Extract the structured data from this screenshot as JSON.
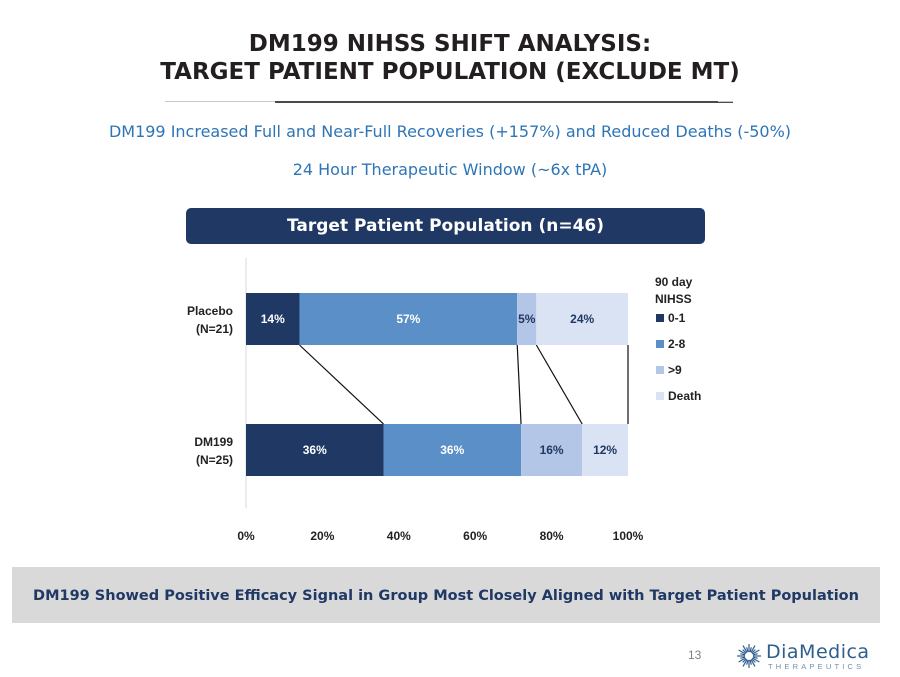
{
  "slide": {
    "title_line1": "DM199 NIHSS SHIFT ANALYSIS:",
    "title_line2": "TARGET PATIENT POPULATION (EXCLUDE MT)",
    "subtitle1": "DM199 Increased Full and Near-Full Recoveries (+157%) and Reduced Deaths (-50%)",
    "subtitle2": "24 Hour Therapeutic Window (~6x tPA)",
    "banner": "Target Patient Population (n=46)",
    "footer": "DM199 Showed Positive Efficacy Signal in Group Most Closely Aligned with Target Patient Population",
    "page_number": "13"
  },
  "logo": {
    "name": "DiaMedica",
    "tagline": "THERAPEUTICS",
    "icon": "starburst-logo-icon",
    "color": "#2e5e8e"
  },
  "colors": {
    "title": "#231f20",
    "subtitle": "#2e75b6",
    "banner_bg": "#1f3864",
    "footer_bg": "#d9d9d9",
    "footer_text": "#1f3864"
  },
  "chart_data": {
    "type": "bar",
    "orientation": "horizontal",
    "stacked": "100%",
    "categories": [
      [
        "Placebo",
        "(N=21)"
      ],
      [
        "DM199",
        "(N=25)"
      ]
    ],
    "series": [
      {
        "name": "0-1",
        "values": [
          14,
          36
        ],
        "labels": [
          "14%",
          "36%"
        ],
        "color": "#1f3864",
        "label_color": "#ffffff"
      },
      {
        "name": "2-8",
        "values": [
          57,
          36
        ],
        "labels": [
          "57%",
          "36%"
        ],
        "color": "#5b8fc7",
        "label_color": "#ffffff"
      },
      {
        "name": ">9",
        "values": [
          5,
          16
        ],
        "labels": [
          "5%",
          "16%"
        ],
        "color": "#b4c6e7",
        "label_color": "#1f3864"
      },
      {
        "name": "Death",
        "values": [
          24,
          12
        ],
        "labels": [
          "24%",
          "12%"
        ],
        "color": "#dae3f3",
        "label_color": "#1f3864"
      }
    ],
    "legend": {
      "title_line1": "90 day",
      "title_line2": "NIHSS",
      "position": "right"
    },
    "xlim": [
      0,
      100
    ],
    "xticks": [
      "0%",
      "20%",
      "40%",
      "60%",
      "80%",
      "100%"
    ],
    "grid": false,
    "connector_lines": true
  }
}
